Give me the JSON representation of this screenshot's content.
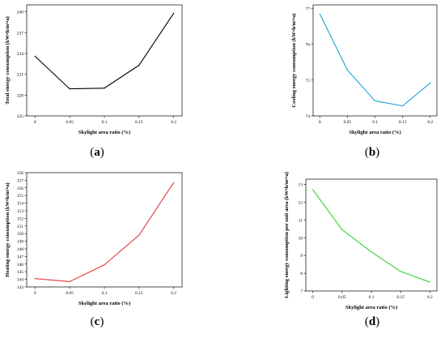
{
  "panels": [
    {
      "letter": "a",
      "chart_data": {
        "type": "line",
        "color": "#000000",
        "x": [
          0,
          0.05,
          0.1,
          0.15,
          0.2
        ],
        "x_ticks": [
          "0",
          "0.05",
          "0.1",
          "0.15",
          "0.2"
        ],
        "y": [
          233.6,
          228.9,
          229.0,
          232.3,
          239.8
        ],
        "ylim": [
          225,
          241
        ],
        "y_ticks": [
          "225",
          "228",
          "231",
          "234",
          "237",
          "240"
        ],
        "y_tick_values": [
          225,
          228,
          231,
          234,
          237,
          240
        ],
        "xlabel": "Skylight area ratio (%)",
        "ylabel": "Total energy consumption (kW•h/m²•a)"
      }
    },
    {
      "letter": "b",
      "chart_data": {
        "type": "line",
        "color": "#1aa3dc",
        "x": [
          0,
          0.05,
          0.1,
          0.15,
          0.2
        ],
        "x_ticks": [
          "0",
          "0.05",
          "0.1",
          "0.15",
          "0.2"
        ],
        "y": [
          76.85,
          75.28,
          74.42,
          74.28,
          74.92
        ],
        "ylim": [
          74,
          77.1
        ],
        "y_ticks": [
          "74",
          "75",
          "76",
          "77"
        ],
        "y_tick_values": [
          74,
          75,
          76,
          77
        ],
        "xlabel": "Skylight area ratio (%)",
        "ylabel": "Cooling energy consumption (kW•h/m²•a)"
      }
    },
    {
      "letter": "c",
      "chart_data": {
        "type": "line",
        "color": "#e23b3b",
        "x": [
          0,
          0.05,
          0.1,
          0.15,
          0.2
        ],
        "x_ticks": [
          "0",
          "0.05",
          "0.1",
          "0.15",
          "0.2"
        ],
        "y": [
          144.1,
          143.7,
          145.9,
          149.8,
          156.7
        ],
        "ylim": [
          143,
          158
        ],
        "y_ticks": [
          "143",
          "144",
          "145",
          "146",
          "147",
          "148",
          "149",
          "150",
          "151",
          "152",
          "153",
          "154",
          "155",
          "156",
          "157",
          "158"
        ],
        "y_tick_values": [
          143,
          144,
          145,
          146,
          147,
          148,
          149,
          150,
          151,
          152,
          153,
          154,
          155,
          156,
          157,
          158
        ],
        "xlabel": "Skylight area ratio (%)",
        "ylabel": "Heating energy consumption (kW•h/m²•a)"
      }
    },
    {
      "letter": "d",
      "chart_data": {
        "type": "line",
        "color": "#2fd42f",
        "x": [
          0,
          0.05,
          0.1,
          0.15,
          0.2
        ],
        "x_ticks": [
          "0",
          "0.05",
          "0.1",
          "0.15",
          "0.2"
        ],
        "y": [
          12.7,
          10.45,
          9.2,
          8.1,
          7.5
        ],
        "ylim": [
          7,
          13.3
        ],
        "y_ticks": [
          "7",
          "8",
          "9",
          "10",
          "11",
          "12",
          "13"
        ],
        "y_tick_values": [
          7,
          8,
          9,
          10,
          11,
          12,
          13
        ],
        "xlabel": "Skylight area ratio (%)",
        "ylabel": "Lighting energy consumption per unit area (kW•h/m²•a)"
      }
    }
  ]
}
